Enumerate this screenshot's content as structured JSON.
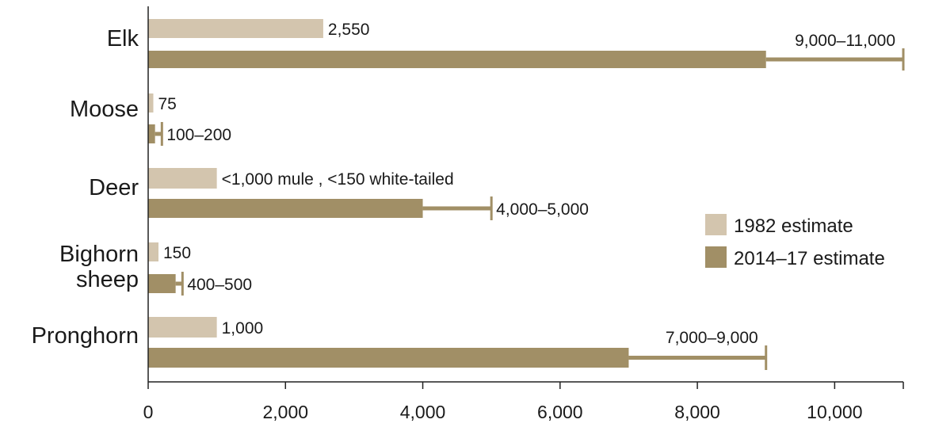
{
  "colors": {
    "series_1982": "#d3c5ae",
    "series_2014": "#a18f66",
    "axis": "#222222",
    "text": "#1a1a1a"
  },
  "chart_data": {
    "type": "bar",
    "orientation": "horizontal",
    "categories": [
      "Elk",
      "Moose",
      "Deer",
      "Bighorn sheep",
      "Pronghorn"
    ],
    "category_lines": [
      [
        "Elk"
      ],
      [
        "Moose"
      ],
      [
        "Deer"
      ],
      [
        "Bighorn",
        "sheep"
      ],
      [
        "Pronghorn"
      ]
    ],
    "series": [
      {
        "name": "1982 estimate",
        "color": "#d3c5ae",
        "values": [
          2550,
          75,
          1000,
          150,
          1000
        ],
        "labels": [
          "2,550",
          "75",
          "<1,000 mule , <150 white-tailed",
          "150",
          "1,000"
        ]
      },
      {
        "name": "2014–17 estimate",
        "color": "#a18f66",
        "values": [
          9000,
          100,
          4000,
          400,
          7000
        ],
        "error_upper": [
          11000,
          200,
          5000,
          500,
          9000
        ],
        "labels": [
          "9,000–11,000",
          "100–200",
          "4,000–5,000",
          "400–500",
          "7,000–9,000"
        ]
      }
    ],
    "xlim": [
      0,
      11000
    ],
    "xticks": [
      0,
      2000,
      4000,
      6000,
      8000,
      10000
    ],
    "xtick_labels": [
      "0",
      "2,000",
      "4,000",
      "6,000",
      "8,000",
      "10,000"
    ],
    "title": "",
    "xlabel": "",
    "ylabel": "",
    "grid": false,
    "legend_position": "right"
  }
}
